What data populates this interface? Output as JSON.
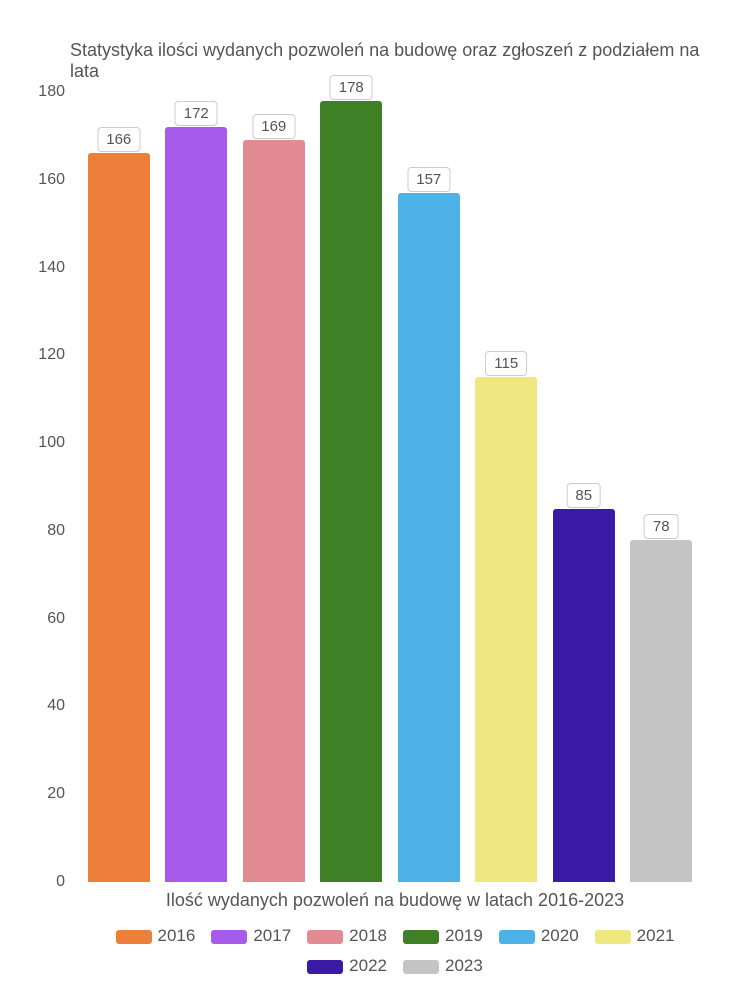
{
  "chart": {
    "type": "bar",
    "title": "Statystyka ilości wydanych pozwoleń na budowę oraz zgłoszeń z podziałem na lata",
    "xlabel": "Ilość wydanych pozwoleń na budowę w latach 2016-2023",
    "background_color": "#ffffff",
    "text_color": "#555555",
    "title_fontsize": 18,
    "label_fontsize": 18,
    "tick_fontsize": 16,
    "ylim": [
      0,
      180
    ],
    "ytick_step": 20,
    "yticks": [
      0,
      20,
      40,
      60,
      80,
      100,
      120,
      140,
      160,
      180
    ],
    "bar_width": 0.8,
    "series": [
      {
        "year": "2016",
        "value": 166,
        "color": "#ee7f3a"
      },
      {
        "year": "2017",
        "value": 172,
        "color": "#a75beb"
      },
      {
        "year": "2018",
        "value": 169,
        "color": "#e38b92"
      },
      {
        "year": "2019",
        "value": 178,
        "color": "#3e8025"
      },
      {
        "year": "2020",
        "value": 157,
        "color": "#4eb1e8"
      },
      {
        "year": "2021",
        "value": 115,
        "color": "#efe880"
      },
      {
        "year": "2022",
        "value": 85,
        "color": "#3a1aa5"
      },
      {
        "year": "2023",
        "value": 78,
        "color": "#c4c4c4"
      }
    ],
    "value_label_bg": "#ffffff",
    "value_label_border": "#cccccc"
  }
}
